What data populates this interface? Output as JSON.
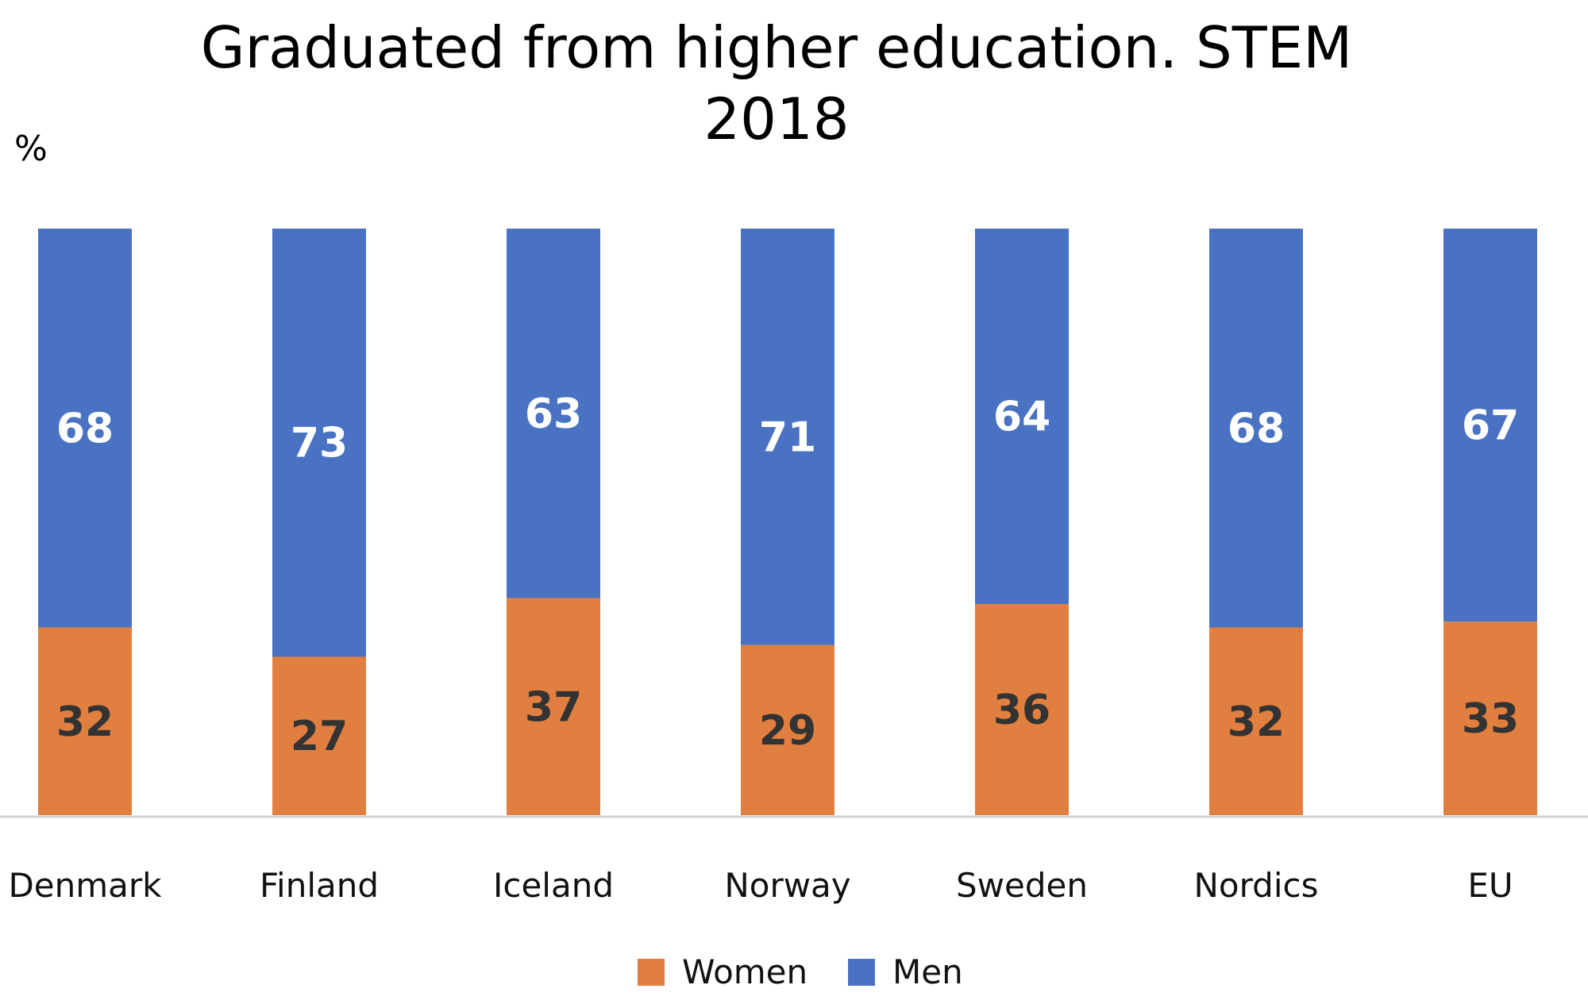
{
  "chart_data": {
    "type": "bar",
    "stacked": true,
    "title": "Graduated from higher education. STEM",
    "subtitle": "2018",
    "ylabel": "%",
    "xlabel": "",
    "ylim": [
      0,
      100
    ],
    "grid": false,
    "legend_placement": "bottom",
    "categories": [
      "Denmark",
      "Finland",
      "Iceland",
      "Norway",
      "Sweden",
      "Nordics",
      "EU"
    ],
    "series": [
      {
        "name": "Women",
        "color": "#E07F3F",
        "label_color": "#333333",
        "values": [
          32,
          27,
          37,
          29,
          36,
          32,
          33
        ]
      },
      {
        "name": "Men",
        "color": "#4A72C2",
        "label_color": "#FFFFFF",
        "values": [
          68,
          73,
          63,
          71,
          64,
          68,
          67
        ]
      }
    ]
  }
}
